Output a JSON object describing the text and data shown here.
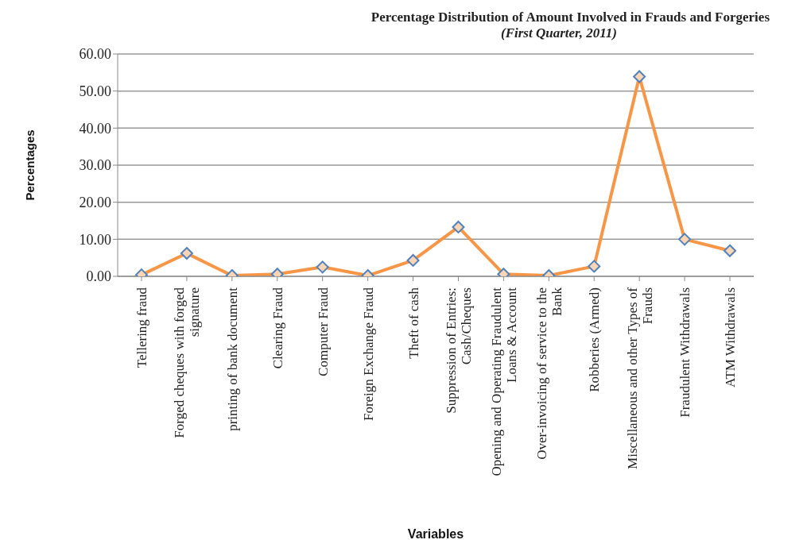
{
  "chart_data": {
    "type": "line",
    "title": "Percentage Distribution of Amount Involved in Frauds and Forgeries",
    "subtitle": "(First Quarter, 2011)",
    "xlabel": "Variables",
    "ylabel": "Percentages",
    "categories": [
      "Tellering fraud",
      "Forged cheques with forged signature",
      "printing of bank document",
      "Clearing Fraud",
      "Computer Fraud",
      "Foreign Exchange Fraud",
      "Theft of cash",
      "Suppression of Entries: Cash/Cheques",
      "Opening and Operating Fraudulent Loans & Account",
      "Over-invoicing of service to the Bank",
      "Robberies (Armed)",
      "Miscellaneous and other Types of Frauds",
      "Fraudulent Withdrawals",
      "ATM Withdrawals"
    ],
    "series": [
      {
        "color": "#f79646",
        "values": [
          0.4,
          6.2,
          0.2,
          0.6,
          2.5,
          0.2,
          4.3,
          13.3,
          0.6,
          0.2,
          2.7,
          53.9,
          10.0,
          6.9
        ]
      }
    ],
    "ylim": [
      0,
      60
    ],
    "yticks": [
      {
        "value": 0,
        "label": "0.00"
      },
      {
        "value": 10,
        "label": "10.00"
      },
      {
        "value": 20,
        "label": "20.00"
      },
      {
        "value": 30,
        "label": "30.00"
      },
      {
        "value": 40,
        "label": "40.00"
      },
      {
        "value": 50,
        "label": "50.00"
      },
      {
        "value": 60,
        "label": "60.00"
      }
    ],
    "grid": "y",
    "legend": false,
    "marker": "diamond",
    "line_style": "solid"
  }
}
